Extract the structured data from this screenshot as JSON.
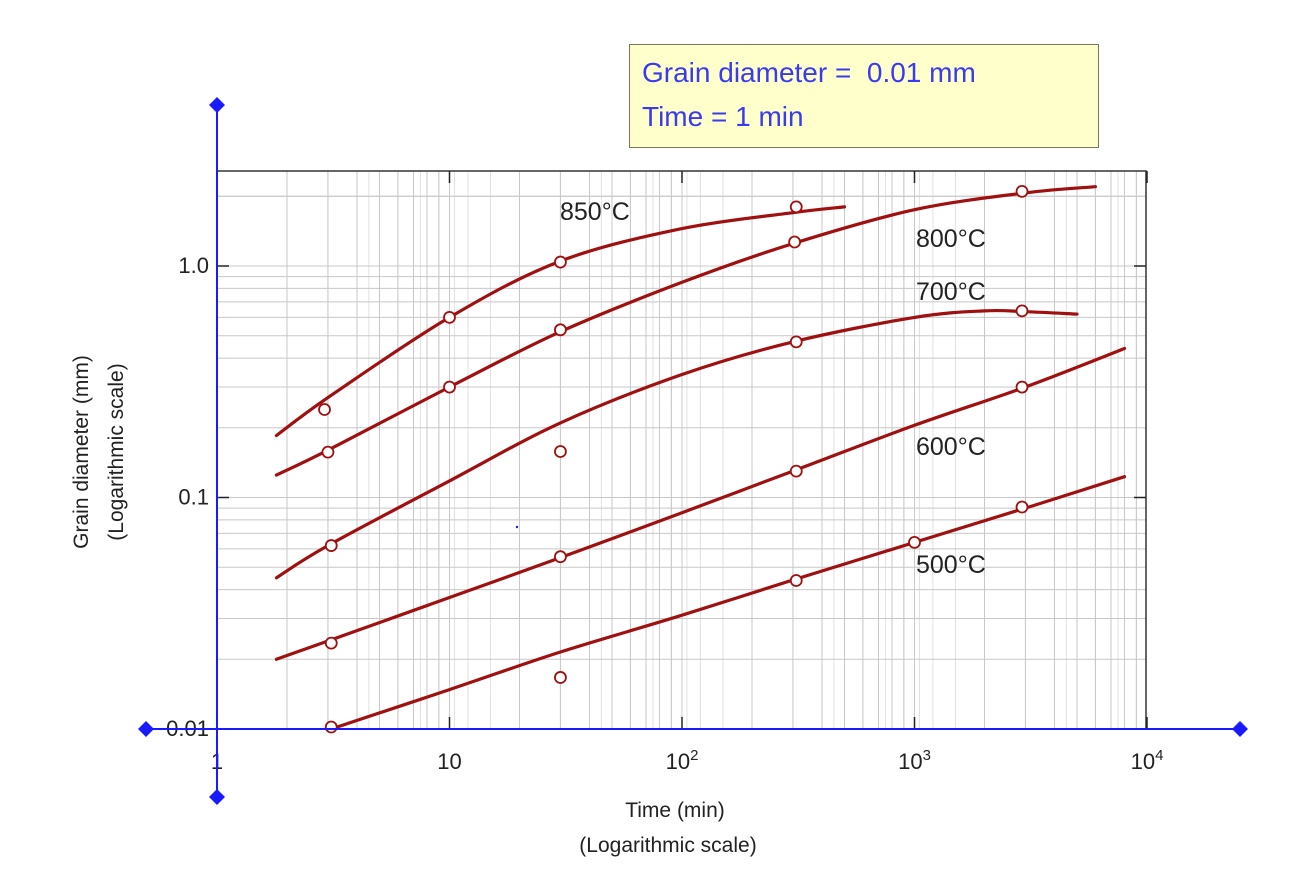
{
  "readout": {
    "line1": "Grain diameter =  0.01 mm",
    "line2": "Time = 1 min"
  },
  "colors": {
    "curve": "#a01010",
    "handle": "#1a1aff",
    "grid": "#c8c8c8",
    "readout_bg": "#ffffcc",
    "readout_text": "#3a3af0"
  },
  "chart_data": {
    "type": "line",
    "title": "",
    "xlabel": "Time (min)",
    "xlabel_sub": "(Logarithmic scale)",
    "ylabel": "Grain diameter (mm)",
    "ylabel_sub": "(Logarithmic scale)",
    "xscale": "log",
    "yscale": "log",
    "xlim": [
      1,
      10000
    ],
    "ylim": [
      0.01,
      2.6
    ],
    "grid": true,
    "x_ticks": [
      {
        "value": 1,
        "label": "1",
        "sup": ""
      },
      {
        "value": 10,
        "label": "10",
        "sup": ""
      },
      {
        "value": 100,
        "label": "10",
        "sup": "2"
      },
      {
        "value": 1000,
        "label": "10",
        "sup": "3"
      },
      {
        "value": 10000,
        "label": "10",
        "sup": "4"
      }
    ],
    "y_ticks": [
      {
        "value": 0.01,
        "label": "0.01"
      },
      {
        "value": 0.1,
        "label": "0.1"
      },
      {
        "value": 1.0,
        "label": "1.0"
      }
    ],
    "series": [
      {
        "name": "850°C",
        "curve": [
          [
            1.8,
            0.185
          ],
          [
            3,
            0.27
          ],
          [
            10,
            0.6
          ],
          [
            30,
            1.05
          ],
          [
            100,
            1.45
          ],
          [
            300,
            1.7
          ],
          [
            500,
            1.8
          ]
        ],
        "points": [
          [
            2.9,
            0.24
          ],
          [
            10,
            0.6
          ],
          [
            30,
            1.04
          ],
          [
            310,
            1.8
          ]
        ]
      },
      {
        "name": "800°C",
        "curve": [
          [
            1.8,
            0.125
          ],
          [
            3,
            0.16
          ],
          [
            10,
            0.3
          ],
          [
            30,
            0.52
          ],
          [
            100,
            0.85
          ],
          [
            300,
            1.25
          ],
          [
            1000,
            1.75
          ],
          [
            3000,
            2.07
          ],
          [
            6000,
            2.2
          ]
        ],
        "points": [
          [
            3,
            0.157
          ],
          [
            10,
            0.3
          ],
          [
            30,
            0.53
          ],
          [
            305,
            1.27
          ],
          [
            2900,
            2.1
          ]
        ]
      },
      {
        "name": "700°C",
        "curve": [
          [
            1.8,
            0.045
          ],
          [
            3,
            0.062
          ],
          [
            10,
            0.118
          ],
          [
            30,
            0.21
          ],
          [
            100,
            0.34
          ],
          [
            300,
            0.47
          ],
          [
            1000,
            0.6
          ],
          [
            2000,
            0.64
          ],
          [
            3000,
            0.635
          ],
          [
            5000,
            0.62
          ]
        ],
        "points": [
          [
            3.1,
            0.062
          ],
          [
            30,
            0.158
          ],
          [
            310,
            0.47
          ],
          [
            2900,
            0.64
          ]
        ]
      },
      {
        "name": "600°C",
        "curve": [
          [
            1.8,
            0.02
          ],
          [
            3,
            0.024
          ],
          [
            10,
            0.037
          ],
          [
            30,
            0.055
          ],
          [
            100,
            0.086
          ],
          [
            300,
            0.13
          ],
          [
            1000,
            0.205
          ],
          [
            3000,
            0.3
          ],
          [
            8000,
            0.44
          ]
        ],
        "points": [
          [
            3.1,
            0.0235
          ],
          [
            30,
            0.0555
          ],
          [
            310,
            0.13
          ],
          [
            2900,
            0.3
          ]
        ]
      },
      {
        "name": "500°C",
        "curve": [
          [
            3.1,
            0.01
          ],
          [
            10,
            0.0148
          ],
          [
            30,
            0.0215
          ],
          [
            100,
            0.031
          ],
          [
            300,
            0.044
          ],
          [
            1000,
            0.064
          ],
          [
            3000,
            0.09
          ],
          [
            8000,
            0.123
          ]
        ],
        "points": [
          [
            3.1,
            0.0102
          ],
          [
            30,
            0.0167
          ],
          [
            310,
            0.0438
          ],
          [
            1000,
            0.064
          ],
          [
            2900,
            0.091
          ]
        ]
      }
    ]
  }
}
